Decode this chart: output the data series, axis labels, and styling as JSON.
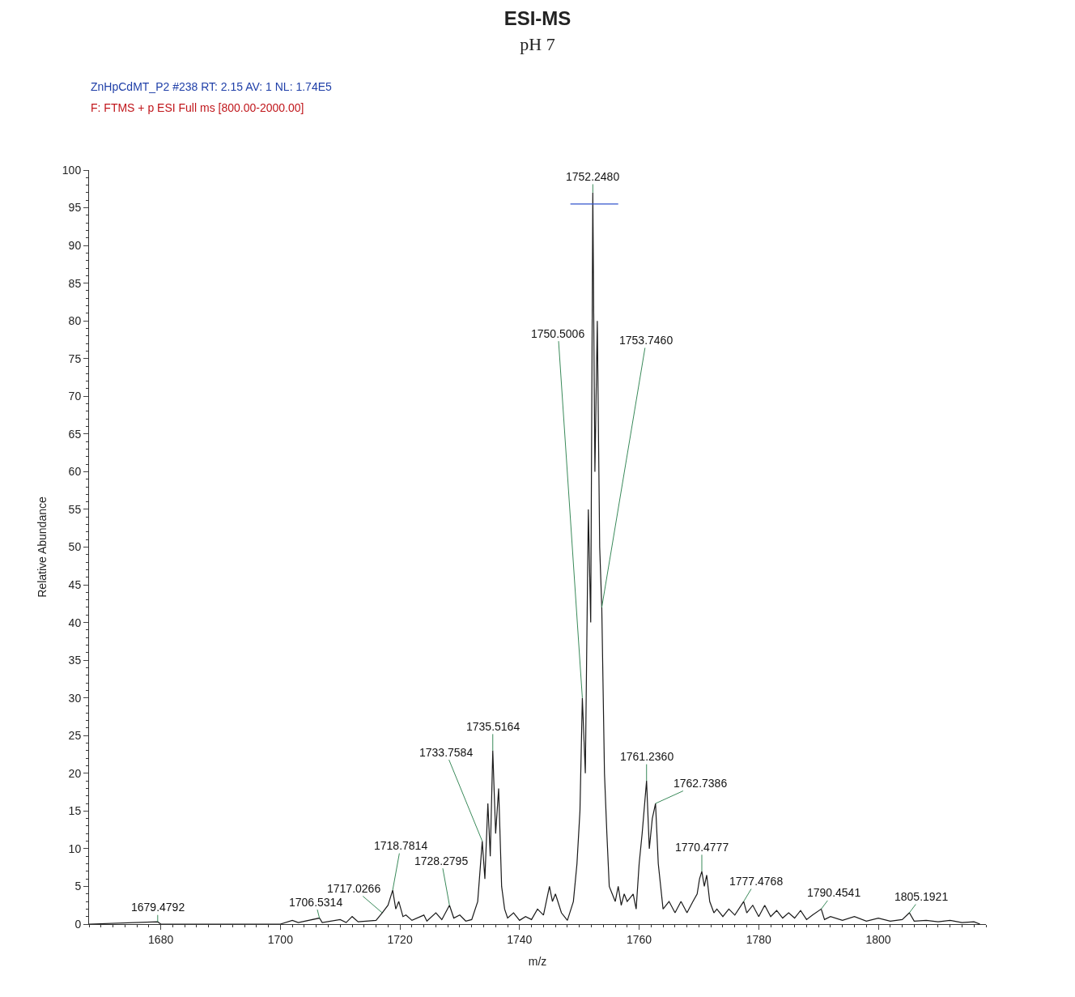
{
  "chart_data": {
    "type": "line",
    "title": "ESI-MS",
    "subtitle": "pH 7",
    "xlabel": "m/z",
    "ylabel": "Relative Abundance",
    "xlim": [
      1668,
      1818
    ],
    "xticks": [
      1680,
      1700,
      1720,
      1740,
      1760,
      1780,
      1800
    ],
    "ylim": [
      0,
      100
    ],
    "yticks": [
      0,
      5,
      10,
      15,
      20,
      25,
      30,
      35,
      40,
      45,
      50,
      55,
      60,
      65,
      70,
      75,
      80,
      85,
      90,
      95,
      100
    ],
    "marker": "none",
    "line_style": "solid",
    "series": [
      {
        "color": "#1a1a1a",
        "x": [
          1668,
          1679.48,
          1680,
          1700,
          1702,
          1703,
          1706.53,
          1707,
          1710,
          1711,
          1712,
          1713,
          1716,
          1717.03,
          1718,
          1718.78,
          1719.3,
          1719.8,
          1720.5,
          1721,
          1722,
          1724,
          1724.5,
          1726,
          1727,
          1728.28,
          1729,
          1730,
          1731,
          1732,
          1733,
          1733.76,
          1734.2,
          1734.7,
          1735.1,
          1735.52,
          1736,
          1736.5,
          1737,
          1737.5,
          1738,
          1739,
          1740,
          1741,
          1742,
          1743,
          1744,
          1745,
          1745.5,
          1746,
          1747,
          1748,
          1749,
          1749.6,
          1750.1,
          1750.5,
          1751,
          1751.5,
          1751.9,
          1752.25,
          1752.6,
          1753,
          1753.4,
          1753.75,
          1754.2,
          1754.6,
          1755,
          1755.5,
          1756,
          1756.5,
          1757,
          1757.5,
          1758,
          1759,
          1759.5,
          1760,
          1760.5,
          1761.24,
          1761.7,
          1762.2,
          1762.74,
          1763.2,
          1763.6,
          1764,
          1765,
          1766,
          1767,
          1768,
          1769,
          1769.7,
          1770.1,
          1770.48,
          1770.9,
          1771.3,
          1771.8,
          1772.5,
          1773,
          1774,
          1775,
          1776,
          1777.48,
          1778,
          1779,
          1780,
          1781,
          1782,
          1783,
          1784,
          1785,
          1786,
          1787,
          1788,
          1789,
          1790.45,
          1791,
          1792,
          1794,
          1796,
          1798,
          1800,
          1802,
          1804,
          1805.19,
          1806,
          1808,
          1810,
          1812,
          1814,
          1816,
          1817
        ],
        "values": [
          0,
          0.3,
          0,
          0,
          0.5,
          0.2,
          0.8,
          0.2,
          0.6,
          0.2,
          1.0,
          0.3,
          0.5,
          1.5,
          2.5,
          4.5,
          2,
          3,
          1,
          1.2,
          0.5,
          1.2,
          0.4,
          1.5,
          0.6,
          2.5,
          0.8,
          1.2,
          0.4,
          0.6,
          3,
          11,
          6,
          16,
          9,
          23,
          12,
          18,
          5,
          2,
          0.8,
          1.5,
          0.5,
          1,
          0.6,
          2,
          1.2,
          5,
          3,
          4,
          1.5,
          0.5,
          3,
          8,
          15,
          30,
          20,
          55,
          40,
          97,
          60,
          80,
          50,
          42,
          20,
          12,
          5,
          4,
          3,
          5,
          2.5,
          4,
          3,
          4,
          2,
          8,
          12,
          19,
          10,
          14,
          16,
          8,
          5,
          2,
          3,
          1.5,
          3,
          1.5,
          3,
          4,
          6,
          7,
          5,
          6.5,
          3,
          1.5,
          2,
          1,
          2,
          1.2,
          3,
          1.5,
          2.5,
          1,
          2.5,
          1,
          1.8,
          0.8,
          1.5,
          0.8,
          1.8,
          0.6,
          1.2,
          2,
          0.6,
          1.0,
          0.5,
          1.0,
          0.4,
          0.8,
          0.4,
          0.6,
          1.5,
          0.4,
          0.5,
          0.3,
          0.5,
          0.2,
          0.3,
          0
        ]
      },
      {
        "color": "#3355cc",
        "x": [
          1748.5,
          1756.5
        ],
        "values": [
          95.5,
          95.5
        ]
      }
    ],
    "annotations": [
      "ZnHpCdMT_P2 #238 RT: 2.15 AV: 1 NL: 1.74E5",
      "F: FTMS + p ESI Full ms [800.00-2000.00]",
      {
        "text": "1679.4792",
        "x": 1679.48,
        "y": 0.3
      },
      {
        "text": "1706.5314",
        "x": 1706.53,
        "y": 0.8
      },
      {
        "text": "1717.0266",
        "x": 1717.03,
        "y": 1.5
      },
      {
        "text": "1718.7814",
        "x": 1718.78,
        "y": 4.5
      },
      {
        "text": "1728.2795",
        "x": 1728.28,
        "y": 2.5
      },
      {
        "text": "1733.7584",
        "x": 1733.76,
        "y": 11
      },
      {
        "text": "1735.5164",
        "x": 1735.52,
        "y": 23
      },
      {
        "text": "1750.5006",
        "x": 1750.5,
        "y": 30
      },
      {
        "text": "1752.2480",
        "x": 1752.25,
        "y": 97
      },
      {
        "text": "1753.7460",
        "x": 1753.75,
        "y": 42
      },
      {
        "text": "1761.2360",
        "x": 1761.24,
        "y": 19
      },
      {
        "text": "1762.7386",
        "x": 1762.74,
        "y": 16
      },
      {
        "text": "1770.4777",
        "x": 1770.48,
        "y": 7
      },
      {
        "text": "1777.4768",
        "x": 1777.48,
        "y": 3
      },
      {
        "text": "1790.4541",
        "x": 1790.45,
        "y": 2
      },
      {
        "text": "1805.1921",
        "x": 1805.19,
        "y": 1.5
      }
    ]
  }
}
